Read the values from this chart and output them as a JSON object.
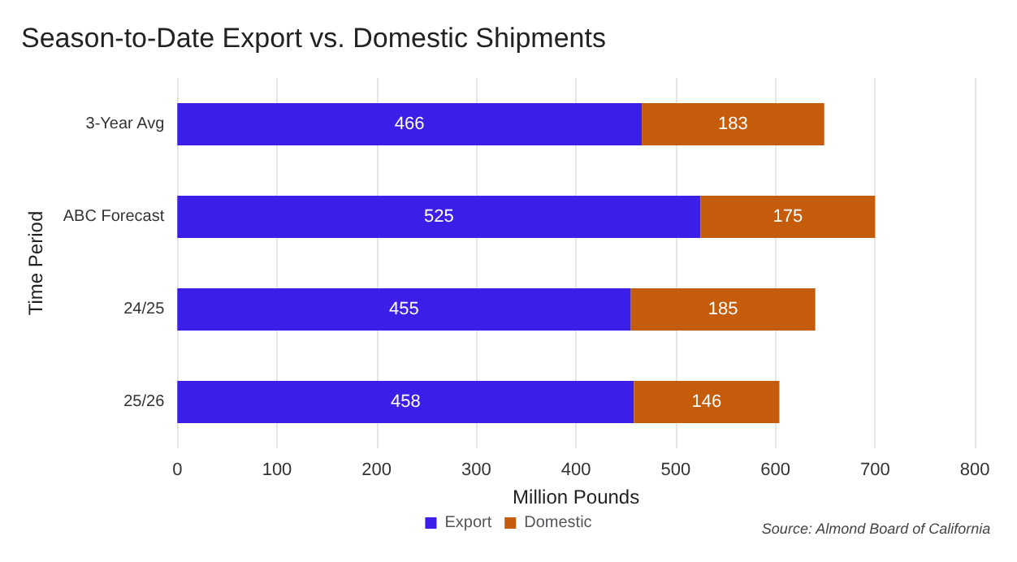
{
  "chart_data": {
    "type": "bar",
    "orientation": "horizontal",
    "stacked": true,
    "title": "Season-to-Date Export vs. Domestic Shipments",
    "xlabel": "Million Pounds",
    "ylabel": "Time Period",
    "categories": [
      "3-Year Avg",
      "ABC Forecast",
      "24/25",
      "25/26"
    ],
    "series": [
      {
        "name": "Export",
        "color": "#3b1ee8",
        "values": [
          466,
          525,
          455,
          458
        ]
      },
      {
        "name": "Domestic",
        "color": "#c45c0c",
        "values": [
          183,
          175,
          185,
          146
        ]
      }
    ],
    "xlim": [
      0,
      800
    ],
    "xticks": [
      0,
      100,
      200,
      300,
      400,
      500,
      600,
      700,
      800
    ],
    "grid": "x",
    "data_labels": true,
    "legend": "bottom",
    "annotations": [
      "Source: Almond Board of California"
    ]
  }
}
